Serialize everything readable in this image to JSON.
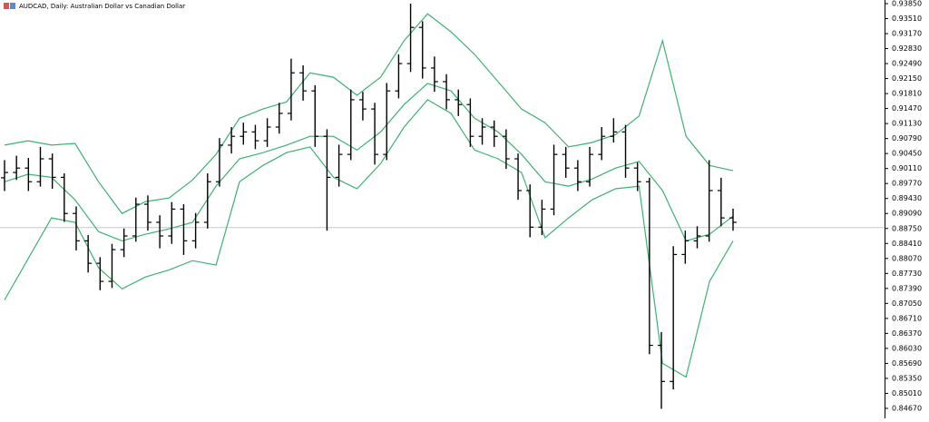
{
  "chart_data": {
    "type": "ohlc",
    "title": "AUDCAD, Daily:  Australian Dollar vs Canadian Dollar",
    "bar_color": "#000000",
    "open": [
      0.899,
      0.9002,
      0.9012,
      0.8981,
      0.9033,
      0.8991,
      0.8909,
      0.8847,
      0.8796,
      0.8755,
      0.8827,
      0.8858,
      0.893,
      0.8889,
      0.8858,
      0.8919,
      0.8847,
      0.8889,
      0.8981,
      0.9064,
      0.9084,
      0.9094,
      0.9074,
      0.9105,
      0.9136,
      0.9228,
      0.9187,
      0.9084,
      0.8991,
      0.9043,
      0.9167,
      0.9146,
      0.9043,
      0.9187,
      0.9249,
      0.9331,
      0.9239,
      0.9208,
      0.9167,
      0.9156,
      0.9084,
      0.9105,
      0.9084,
      0.9033,
      0.8961,
      0.8878,
      0.8919,
      0.9043,
      0.9012,
      0.8981,
      0.9043,
      0.9084,
      0.9094,
      0.9012,
      0.8981,
      0.861,
      0.8528,
      0.8816,
      0.8847,
      0.8858,
      0.8961,
      0.8899
    ],
    "high": [
      0.903,
      0.904,
      0.9035,
      0.906,
      0.9045,
      0.9,
      0.8925,
      0.886,
      0.881,
      0.884,
      0.8875,
      0.8945,
      0.895,
      0.8905,
      0.8935,
      0.893,
      0.891,
      0.9,
      0.908,
      0.9105,
      0.9115,
      0.911,
      0.9125,
      0.916,
      0.926,
      0.9245,
      0.92,
      0.91,
      0.9065,
      0.919,
      0.9185,
      0.916,
      0.9205,
      0.927,
      0.9385,
      0.9345,
      0.9265,
      0.9225,
      0.919,
      0.917,
      0.9125,
      0.912,
      0.91,
      0.9045,
      0.8975,
      0.894,
      0.9065,
      0.906,
      0.903,
      0.906,
      0.9105,
      0.9125,
      0.911,
      0.9025,
      0.899,
      0.864,
      0.8835,
      0.887,
      0.888,
      0.903,
      0.899,
      0.892
    ],
    "low": [
      0.896,
      0.8985,
      0.896,
      0.897,
      0.8965,
      0.889,
      0.8825,
      0.8775,
      0.8735,
      0.874,
      0.881,
      0.8845,
      0.887,
      0.883,
      0.884,
      0.8815,
      0.883,
      0.8875,
      0.897,
      0.9045,
      0.9065,
      0.9055,
      0.906,
      0.909,
      0.912,
      0.9165,
      0.906,
      0.887,
      0.897,
      0.903,
      0.912,
      0.902,
      0.903,
      0.917,
      0.923,
      0.9215,
      0.9185,
      0.9145,
      0.913,
      0.906,
      0.9065,
      0.906,
      0.901,
      0.894,
      0.8855,
      0.886,
      0.8905,
      0.899,
      0.896,
      0.897,
      0.903,
      0.907,
      0.899,
      0.896,
      0.859,
      0.8466,
      0.851,
      0.8795,
      0.883,
      0.8845,
      0.888,
      0.887
    ],
    "close": [
      0.9002,
      0.9012,
      0.8981,
      0.9033,
      0.8991,
      0.8909,
      0.8847,
      0.8796,
      0.8755,
      0.8827,
      0.8858,
      0.893,
      0.8889,
      0.8858,
      0.8919,
      0.8847,
      0.8889,
      0.8981,
      0.9064,
      0.9084,
      0.9094,
      0.9074,
      0.9105,
      0.9136,
      0.9228,
      0.9187,
      0.9084,
      0.8991,
      0.9043,
      0.9167,
      0.9146,
      0.9043,
      0.9187,
      0.9249,
      0.9331,
      0.9239,
      0.9208,
      0.9167,
      0.9156,
      0.9084,
      0.9105,
      0.9084,
      0.9033,
      0.8961,
      0.8878,
      0.8919,
      0.9043,
      0.9012,
      0.8981,
      0.9043,
      0.9084,
      0.9094,
      0.9012,
      0.8981,
      0.861,
      0.8528,
      0.8816,
      0.8847,
      0.8858,
      0.8961,
      0.8899,
      0.8889
    ],
    "series": [
      {
        "color": "#3cb371",
        "values": [
          0.9064,
          0.9074,
          0.9064,
          0.9068,
          0.8981,
          0.8909,
          0.8936,
          0.8944,
          0.8985,
          0.9043,
          0.9125,
          0.9146,
          0.9162,
          0.9228,
          0.9218,
          0.9177,
          0.9218,
          0.9301,
          0.9362,
          0.9321,
          0.927,
          0.9208,
          0.9146,
          0.9115,
          0.906,
          0.907,
          0.9088,
          0.913,
          0.9301,
          0.9084,
          0.9018,
          0.9006
        ]
      },
      {
        "color": "#3cb371",
        "values": [
          0.8981,
          0.8998,
          0.8991,
          0.894,
          0.8868,
          0.8847,
          0.8862,
          0.8874,
          0.8889,
          0.8971,
          0.9033,
          0.9047,
          0.9064,
          0.9084,
          0.9084,
          0.9053,
          0.9094,
          0.9156,
          0.9204,
          0.9187,
          0.9125,
          0.9094,
          0.9043,
          0.8981,
          0.8971,
          0.8987,
          0.9012,
          0.9027,
          0.8961,
          0.8847,
          0.8862,
          0.8903
        ]
      },
      {
        "color": "#3cb371",
        "values": [
          0.8713,
          0.8806,
          0.8899,
          0.8889,
          0.8786,
          0.8738,
          0.8765,
          0.8781,
          0.8802,
          0.8792,
          0.8981,
          0.9018,
          0.9047,
          0.906,
          0.8991,
          0.8965,
          0.9022,
          0.9105,
          0.9167,
          0.9136,
          0.9053,
          0.9033,
          0.9002,
          0.8854,
          0.8899,
          0.894,
          0.8965,
          0.8971,
          0.8569,
          0.8538,
          0.8755,
          0.8847
        ]
      }
    ],
    "last_price": 0.8877,
    "last_price_color": "#c8c8c8",
    "ylim": [
      0.84443,
      0.93932
    ],
    "yticks": [
      {
        "value": 0.9385,
        "label": "0.93850"
      },
      {
        "value": 0.9351,
        "label": "0.93510"
      },
      {
        "value": 0.9317,
        "label": "0.93170"
      },
      {
        "value": 0.9283,
        "label": "0.92830"
      },
      {
        "value": 0.9249,
        "label": "0.92490"
      },
      {
        "value": 0.9215,
        "label": "0.92150"
      },
      {
        "value": 0.9181,
        "label": "0.91810"
      },
      {
        "value": 0.9147,
        "label": "0.91470"
      },
      {
        "value": 0.9113,
        "label": "0.91130"
      },
      {
        "value": 0.9079,
        "label": "0.90790"
      },
      {
        "value": 0.9045,
        "label": "0.90450"
      },
      {
        "value": 0.9011,
        "label": "0.90110"
      },
      {
        "value": 0.8977,
        "label": "0.89770"
      },
      {
        "value": 0.8943,
        "label": "0.89430"
      },
      {
        "value": 0.8909,
        "label": "0.89090"
      },
      {
        "value": 0.8875,
        "label": "0.88750"
      },
      {
        "value": 0.8841,
        "label": "0.88410"
      },
      {
        "value": 0.8807,
        "label": "0.88070"
      },
      {
        "value": 0.8773,
        "label": "0.87730"
      },
      {
        "value": 0.8739,
        "label": "0.87390"
      },
      {
        "value": 0.8705,
        "label": "0.87050"
      },
      {
        "value": 0.8671,
        "label": "0.86710"
      },
      {
        "value": 0.8637,
        "label": "0.86370"
      },
      {
        "value": 0.8603,
        "label": "0.86030"
      },
      {
        "value": 0.8569,
        "label": "0.85690"
      },
      {
        "value": 0.8535,
        "label": "0.85350"
      },
      {
        "value": 0.8501,
        "label": "0.85010"
      },
      {
        "value": 0.8467,
        "label": "0.84670"
      }
    ]
  }
}
